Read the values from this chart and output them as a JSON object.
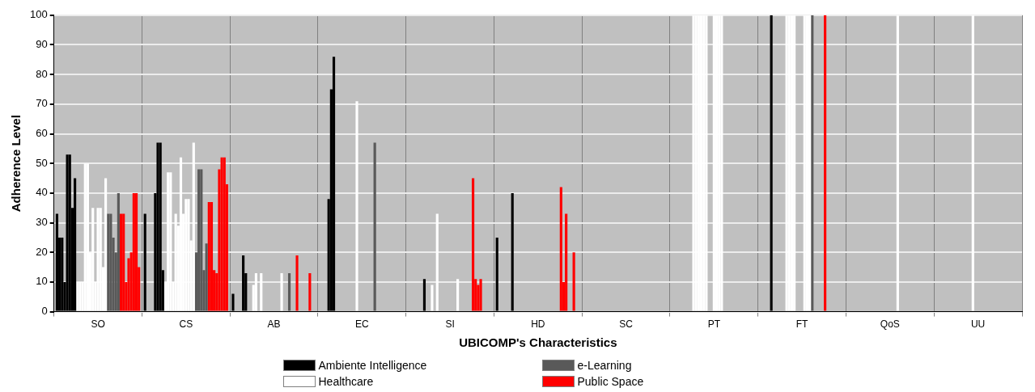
{
  "chart_data": {
    "type": "bar",
    "xlabel": "UBICOMP's Characteristics",
    "ylabel": "Adherence Level",
    "categories": [
      "SO",
      "CS",
      "AB",
      "EC",
      "SI",
      "HD",
      "SC",
      "PT",
      "FT",
      "QoS",
      "UU"
    ],
    "ylim": [
      0,
      100
    ],
    "yticks": [
      0,
      10,
      20,
      30,
      40,
      50,
      60,
      70,
      80,
      90,
      100
    ],
    "grid": true,
    "legend": "bottom",
    "series": [
      {
        "name": "Ambiente Intelligence",
        "color": "#000000",
        "values": [
          33,
          33,
          6,
          0,
          0,
          25,
          0,
          0,
          0,
          0,
          0
        ]
      },
      {
        "color": "#000000",
        "values": [
          25,
          0,
          0,
          0,
          0,
          0,
          0,
          0,
          0,
          0,
          0
        ]
      },
      {
        "color": "#000000",
        "values": [
          25,
          0,
          0,
          0,
          0,
          0,
          0,
          0,
          0,
          0,
          0
        ]
      },
      {
        "color": "#000000",
        "values": [
          10,
          0,
          0,
          38,
          0,
          0,
          0,
          0,
          0,
          0,
          0
        ]
      },
      {
        "color": "#000000",
        "values": [
          53,
          40,
          19,
          75,
          0,
          0,
          0,
          0,
          100,
          0,
          0
        ]
      },
      {
        "color": "#000000",
        "values": [
          53,
          57,
          13,
          86,
          0,
          0,
          0,
          0,
          0,
          0,
          0
        ]
      },
      {
        "color": "#000000",
        "values": [
          35,
          57,
          0,
          0,
          11,
          40,
          0,
          0,
          0,
          0,
          0
        ]
      },
      {
        "color": "#000000",
        "values": [
          45,
          14,
          0,
          0,
          0,
          0,
          0,
          0,
          0,
          0,
          0
        ]
      },
      {
        "name": "Healthcare",
        "color": "#ffffff",
        "values": [
          10,
          10,
          9,
          0,
          0,
          0,
          0,
          100,
          0,
          0,
          0
        ]
      },
      {
        "color": "#ffffff",
        "values": [
          10,
          47,
          13,
          0,
          9,
          0,
          0,
          100,
          0,
          0,
          0
        ]
      },
      {
        "color": "#ffffff",
        "values": [
          10,
          47,
          0,
          0,
          0,
          0,
          0,
          100,
          100,
          0,
          0
        ]
      },
      {
        "color": "#ffffff",
        "values": [
          50,
          10,
          13,
          0,
          33,
          0,
          0,
          100,
          100,
          0,
          0
        ]
      },
      {
        "color": "#ffffff",
        "values": [
          50,
          33,
          0,
          0,
          0,
          0,
          0,
          100,
          100,
          0,
          0
        ]
      },
      {
        "color": "#ffffff",
        "values": [
          20,
          29,
          0,
          0,
          0,
          0,
          0,
          100,
          100,
          0,
          0
        ]
      },
      {
        "color": "#ffffff",
        "values": [
          35,
          52,
          0,
          71,
          0,
          0,
          0,
          0,
          0,
          0,
          100
        ]
      },
      {
        "color": "#ffffff",
        "values": [
          10,
          33,
          0,
          0,
          0,
          0,
          0,
          0,
          0,
          0,
          0
        ]
      },
      {
        "color": "#ffffff",
        "values": [
          35,
          38,
          0,
          0,
          0,
          0,
          0,
          100,
          0,
          0,
          0
        ]
      },
      {
        "color": "#ffffff",
        "values": [
          35,
          38,
          0,
          0,
          0,
          0,
          0,
          100,
          100,
          0,
          0
        ]
      },
      {
        "color": "#ffffff",
        "values": [
          15,
          24,
          0,
          0,
          0,
          0,
          0,
          100,
          100,
          0,
          0
        ]
      },
      {
        "color": "#ffffff",
        "values": [
          45,
          57,
          13,
          0,
          11,
          0,
          0,
          100,
          100,
          100,
          0
        ]
      },
      {
        "name": "e-Learning",
        "color": "#595959",
        "values": [
          33,
          20,
          0,
          0,
          0,
          0,
          0,
          0,
          100,
          0,
          0
        ]
      },
      {
        "color": "#595959",
        "values": [
          33,
          48,
          0,
          57,
          0,
          0,
          0,
          0,
          0,
          0,
          0
        ]
      },
      {
        "color": "#595959",
        "values": [
          25,
          48,
          13,
          0,
          0,
          0,
          0,
          0,
          0,
          0,
          0
        ]
      },
      {
        "color": "#595959",
        "values": [
          20,
          14,
          0,
          0,
          0,
          0,
          0,
          0,
          0,
          0,
          0
        ]
      },
      {
        "color": "#595959",
        "values": [
          40,
          23,
          0,
          0,
          0,
          0,
          0,
          0,
          0,
          0,
          0
        ]
      },
      {
        "name": "Public Space",
        "color": "#ff0000",
        "values": [
          33,
          37,
          19,
          0,
          45,
          42,
          0,
          0,
          100,
          0,
          0
        ]
      },
      {
        "color": "#ff0000",
        "values": [
          33,
          37,
          0,
          0,
          11,
          10,
          0,
          0,
          0,
          0,
          0
        ]
      },
      {
        "color": "#ff0000",
        "values": [
          10,
          14,
          0,
          0,
          9,
          33,
          0,
          0,
          0,
          0,
          0
        ]
      },
      {
        "color": "#ff0000",
        "values": [
          18,
          13,
          0,
          0,
          11,
          0,
          0,
          0,
          0,
          0,
          0
        ]
      },
      {
        "color": "#ff0000",
        "values": [
          20,
          48,
          0,
          0,
          0,
          0,
          0,
          0,
          0,
          0,
          0
        ]
      },
      {
        "color": "#ff0000",
        "values": [
          40,
          52,
          13,
          0,
          0,
          20,
          0,
          0,
          0,
          0,
          0
        ]
      },
      {
        "color": "#ff0000",
        "values": [
          40,
          52,
          0,
          0,
          0,
          0,
          0,
          0,
          0,
          0,
          0
        ]
      },
      {
        "color": "#ff0000",
        "values": [
          15,
          43,
          0,
          0,
          0,
          0,
          0,
          0,
          0,
          0,
          0
        ]
      }
    ]
  }
}
